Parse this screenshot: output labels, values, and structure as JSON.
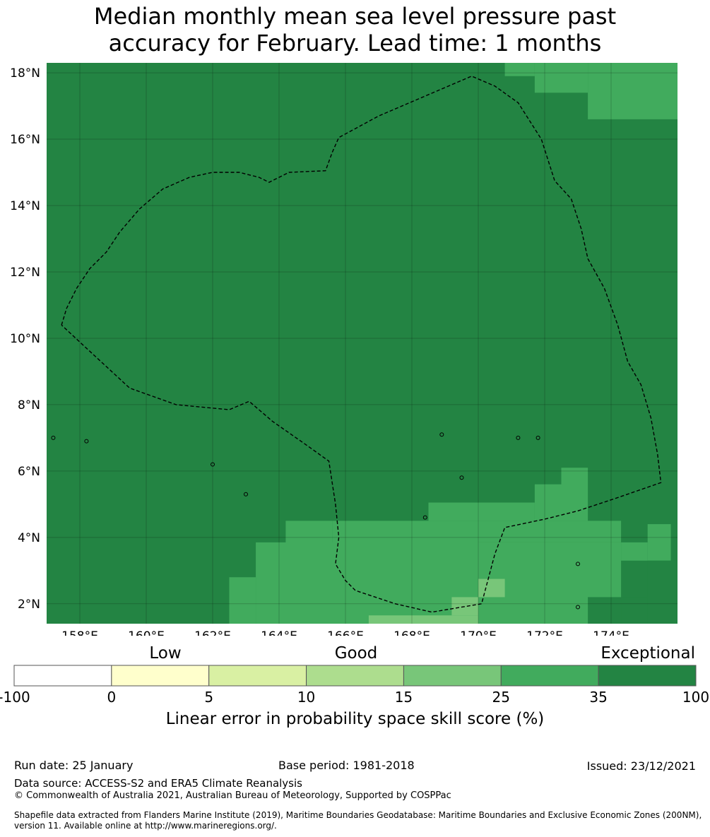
{
  "title": {
    "line1": "Median monthly mean sea level pressure past",
    "line2": "accuracy for February. Lead time: 1 months"
  },
  "map": {
    "lon_range": [
      157.0,
      176.0
    ],
    "lat_range": [
      1.4,
      18.3
    ],
    "x_ticks": [
      {
        "value": 158,
        "label": "158°E"
      },
      {
        "value": 160,
        "label": "160°E"
      },
      {
        "value": 162,
        "label": "162°E"
      },
      {
        "value": 164,
        "label": "164°E"
      },
      {
        "value": 166,
        "label": "166°E"
      },
      {
        "value": 168,
        "label": "168°E"
      },
      {
        "value": 170,
        "label": "170°E"
      },
      {
        "value": 172,
        "label": "172°E"
      },
      {
        "value": 174,
        "label": "174°E"
      }
    ],
    "y_ticks": [
      {
        "value": 18,
        "label": "18°N"
      },
      {
        "value": 16,
        "label": "16°N"
      },
      {
        "value": 14,
        "label": "14°N"
      },
      {
        "value": 12,
        "label": "12°N"
      },
      {
        "value": 10,
        "label": "10°N"
      },
      {
        "value": 8,
        "label": "8°N"
      },
      {
        "value": 6,
        "label": "6°N"
      },
      {
        "value": 4,
        "label": "4°N"
      },
      {
        "value": 2,
        "label": "2°N"
      }
    ],
    "background_category": "35-100",
    "cells": [
      {
        "lon": [
          170.8,
          171.7
        ],
        "lat": [
          17.9,
          18.3
        ],
        "category": "25-35"
      },
      {
        "lon": [
          171.7,
          173.3
        ],
        "lat": [
          17.4,
          18.3
        ],
        "category": "25-35"
      },
      {
        "lon": [
          173.3,
          176.0
        ],
        "lat": [
          16.6,
          18.3
        ],
        "category": "25-35"
      },
      {
        "lon": [
          165.6,
          170.0
        ],
        "lat": [
          3.8,
          4.5
        ],
        "category": "25-35"
      },
      {
        "lon": [
          164.2,
          165.6
        ],
        "lat": [
          3.8,
          4.5
        ],
        "category": "25-35"
      },
      {
        "lon": [
          163.3,
          174.3
        ],
        "lat": [
          1.4,
          3.85
        ],
        "category": "25-35"
      },
      {
        "lon": [
          162.5,
          163.3
        ],
        "lat": [
          1.4,
          2.8
        ],
        "category": "25-35"
      },
      {
        "lon": [
          168.5,
          171.7
        ],
        "lat": [
          4.5,
          5.05
        ],
        "category": "25-35"
      },
      {
        "lon": [
          171.7,
          172.5
        ],
        "lat": [
          4.5,
          5.6
        ],
        "category": "25-35"
      },
      {
        "lon": [
          172.5,
          173.3
        ],
        "lat": [
          4.5,
          6.1
        ],
        "category": "25-35"
      },
      {
        "lon": [
          170.0,
          174.3
        ],
        "lat": [
          3.85,
          4.5
        ],
        "category": "25-35"
      },
      {
        "lon": [
          174.3,
          175.1
        ],
        "lat": [
          3.3,
          3.85
        ],
        "category": "25-35"
      },
      {
        "lon": [
          175.1,
          175.8
        ],
        "lat": [
          3.3,
          4.4
        ],
        "category": "25-35"
      },
      {
        "lon": [
          175.1,
          176.0
        ],
        "lat": [
          1.4,
          3.3
        ],
        "category": "35-100"
      },
      {
        "lon": [
          174.3,
          175.1
        ],
        "lat": [
          1.4,
          2.2
        ],
        "category": "35-100"
      },
      {
        "lon": [
          173.3,
          174.3
        ],
        "lat": [
          1.4,
          2.2
        ],
        "category": "35-100"
      },
      {
        "lon": [
          170.0,
          170.8
        ],
        "lat": [
          2.2,
          2.75
        ],
        "category": "15-25"
      },
      {
        "lon": [
          169.2,
          170.0
        ],
        "lat": [
          1.65,
          2.2
        ],
        "category": "15-25"
      },
      {
        "lon": [
          166.7,
          170.0
        ],
        "lat": [
          1.4,
          1.65
        ],
        "category": "15-25"
      }
    ],
    "boundary": [
      [
        157.45,
        10.4
      ],
      [
        157.6,
        10.9
      ],
      [
        157.9,
        11.5
      ],
      [
        158.3,
        12.1
      ],
      [
        158.8,
        12.6
      ],
      [
        159.2,
        13.2
      ],
      [
        159.8,
        13.9
      ],
      [
        160.5,
        14.5
      ],
      [
        161.3,
        14.85
      ],
      [
        162.0,
        15.0
      ],
      [
        162.8,
        15.0
      ],
      [
        163.4,
        14.85
      ],
      [
        163.7,
        14.7
      ],
      [
        164.3,
        15.0
      ],
      [
        165.4,
        15.05
      ],
      [
        165.6,
        15.6
      ],
      [
        165.8,
        16.05
      ],
      [
        167.0,
        16.7
      ],
      [
        169.8,
        17.9
      ],
      [
        170.5,
        17.6
      ],
      [
        171.2,
        17.1
      ],
      [
        171.9,
        16.0
      ],
      [
        172.3,
        14.75
      ],
      [
        172.8,
        14.2
      ],
      [
        173.1,
        13.3
      ],
      [
        173.3,
        12.4
      ],
      [
        173.8,
        11.5
      ],
      [
        174.2,
        10.4
      ],
      [
        174.5,
        9.3
      ],
      [
        174.9,
        8.6
      ],
      [
        175.2,
        7.6
      ],
      [
        175.4,
        6.5
      ],
      [
        175.5,
        5.65
      ],
      [
        174.2,
        5.2
      ],
      [
        173.0,
        4.8
      ],
      [
        172.0,
        4.55
      ],
      [
        170.8,
        4.3
      ],
      [
        170.5,
        3.5
      ],
      [
        170.1,
        2.0
      ],
      [
        168.6,
        1.75
      ],
      [
        167.5,
        2.0
      ],
      [
        166.3,
        2.4
      ],
      [
        166.0,
        2.7
      ],
      [
        165.7,
        3.2
      ],
      [
        165.8,
        4.0
      ],
      [
        165.7,
        5.0
      ],
      [
        165.5,
        6.3
      ],
      [
        164.8,
        6.8
      ],
      [
        163.8,
        7.5
      ],
      [
        163.1,
        8.1
      ],
      [
        162.5,
        7.85
      ],
      [
        160.9,
        8.0
      ],
      [
        159.5,
        8.5
      ],
      [
        158.2,
        9.7
      ],
      [
        157.45,
        10.4
      ]
    ]
  },
  "colorbar": {
    "title": "Linear error in probability space skill score (%)",
    "categories": [
      "Low",
      "Good",
      "Exceptional"
    ],
    "bins": [
      {
        "range": "-100-0",
        "color": "#ffffff"
      },
      {
        "range": "0-5",
        "color": "#ffffcc"
      },
      {
        "range": "5-10",
        "color": "#d9f0a3"
      },
      {
        "range": "10-15",
        "color": "#addd8e"
      },
      {
        "range": "15-25",
        "color": "#78c679"
      },
      {
        "range": "25-35",
        "color": "#41ab5d"
      },
      {
        "range": "35-100",
        "color": "#238443"
      }
    ],
    "tick_labels": [
      "-100",
      "0",
      "5",
      "10",
      "15",
      "25",
      "35",
      "100"
    ]
  },
  "footer": {
    "run_date": "Run date: 25 January",
    "base_period": "Base period: 1981-2018",
    "issued": "Issued: 23/12/2021",
    "data_source": "Data source: ACCESS-S2 and ERA5 Climate Reanalysis",
    "copyright": "© Commonwealth of Australia 2021, Australian Bureau of Meteorology, Supported by COSPPac",
    "shapefile": "Shapefile data extracted from Flanders Marine Institute (2019), Maritime Boundaries Geodatabase: Maritime Boundaries and Exclusive Economic Zones (200NM), version 11. Available online at http://www.marineregions.org/."
  }
}
